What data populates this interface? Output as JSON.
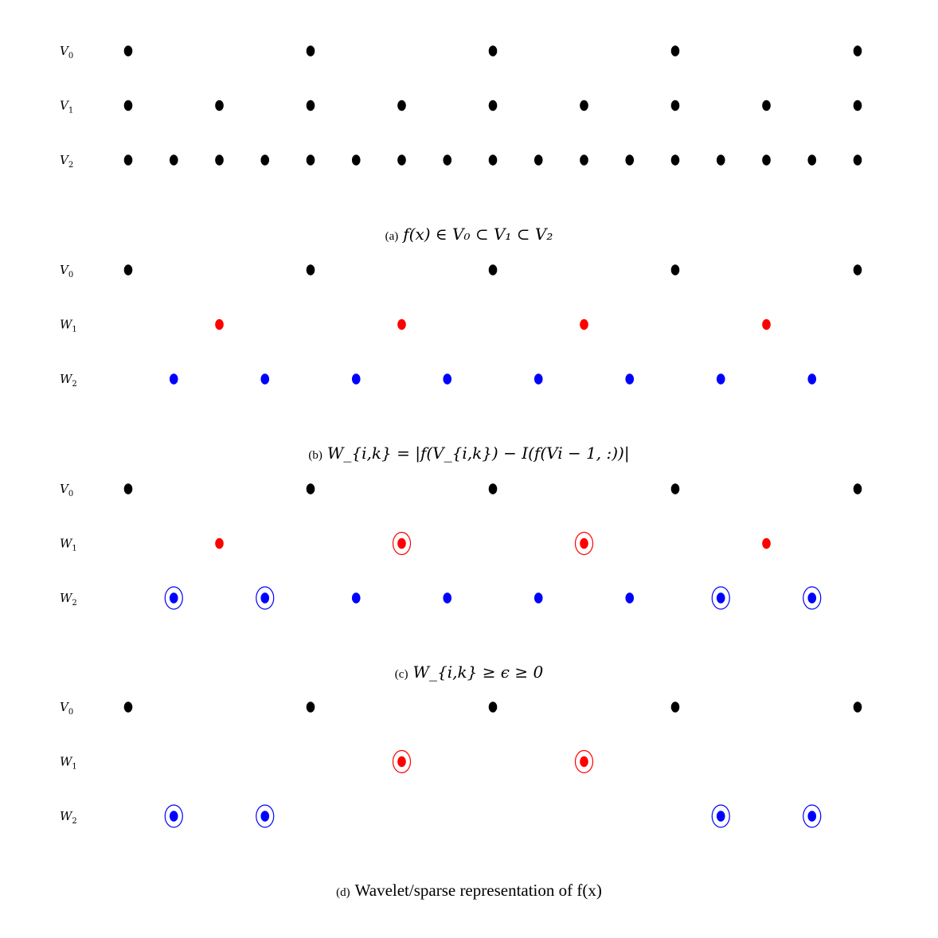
{
  "panels": [
    {
      "id": "a",
      "rows": [
        {
          "name": "V",
          "sub": "0",
          "color": "#000000",
          "step": 4,
          "offset": 0,
          "dots": 5,
          "circled": []
        },
        {
          "name": "V",
          "sub": "1",
          "color": "#000000",
          "step": 2,
          "offset": 0,
          "dots": 9,
          "circled": []
        },
        {
          "name": "V",
          "sub": "2",
          "color": "#000000",
          "step": 1,
          "offset": 0,
          "dots": 17,
          "circled": []
        }
      ],
      "caption_tag": "(a)",
      "caption_math": "f(x) ∈ V₀ ⊂ V₁ ⊂ V₂",
      "caption_text": ""
    },
    {
      "id": "b",
      "rows": [
        {
          "name": "V",
          "sub": "0",
          "color": "#000000",
          "step": 4,
          "offset": 0,
          "dots": 5,
          "circled": []
        },
        {
          "name": "W",
          "sub": "1",
          "color": "#ff0000",
          "step": 4,
          "offset": 2,
          "dots": 4,
          "circled": []
        },
        {
          "name": "W",
          "sub": "2",
          "color": "#0000ff",
          "step": 2,
          "offset": 1,
          "dots": 8,
          "circled": []
        }
      ],
      "caption_tag": "(b)",
      "caption_math": "W_{i,k} = |f(V_{i,k}) − I(f(Vi − 1, :))|",
      "caption_text": ""
    },
    {
      "id": "c",
      "rows": [
        {
          "name": "V",
          "sub": "0",
          "color": "#000000",
          "step": 4,
          "offset": 0,
          "dots": 5,
          "circled": []
        },
        {
          "name": "W",
          "sub": "1",
          "color": "#ff0000",
          "step": 4,
          "offset": 2,
          "dots": 4,
          "circled": [
            1,
            2
          ]
        },
        {
          "name": "W",
          "sub": "2",
          "color": "#0000ff",
          "step": 2,
          "offset": 1,
          "dots": 8,
          "circled": [
            0,
            1,
            6,
            7
          ]
        }
      ],
      "caption_tag": "(c)",
      "caption_math": "W_{i,k} ≥ ϵ ≥ 0",
      "caption_text": ""
    },
    {
      "id": "d",
      "rows": [
        {
          "name": "V",
          "sub": "0",
          "color": "#000000",
          "step": 4,
          "offset": 0,
          "dots": 5,
          "circled": [],
          "only": []
        },
        {
          "name": "W",
          "sub": "1",
          "color": "#ff0000",
          "step": 4,
          "offset": 2,
          "dots": 4,
          "circled": [
            1,
            2
          ],
          "only": [
            1,
            2
          ]
        },
        {
          "name": "W",
          "sub": "2",
          "color": "#0000ff",
          "step": 2,
          "offset": 1,
          "dots": 8,
          "circled": [
            0,
            1,
            6,
            7
          ],
          "only": [
            0,
            1,
            6,
            7
          ]
        }
      ],
      "caption_tag": "(d)",
      "caption_math": "",
      "caption_text": "Wavelet/sparse representation of f(x)"
    }
  ]
}
